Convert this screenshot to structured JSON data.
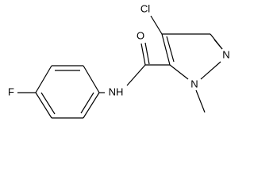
{
  "atoms": [
    {
      "label": "Cl"
    },
    {
      "label": "O"
    },
    {
      "label": "NH"
    },
    {
      "label": "N"
    },
    {
      "label": "N"
    },
    {
      "label": "F"
    }
  ]
}
